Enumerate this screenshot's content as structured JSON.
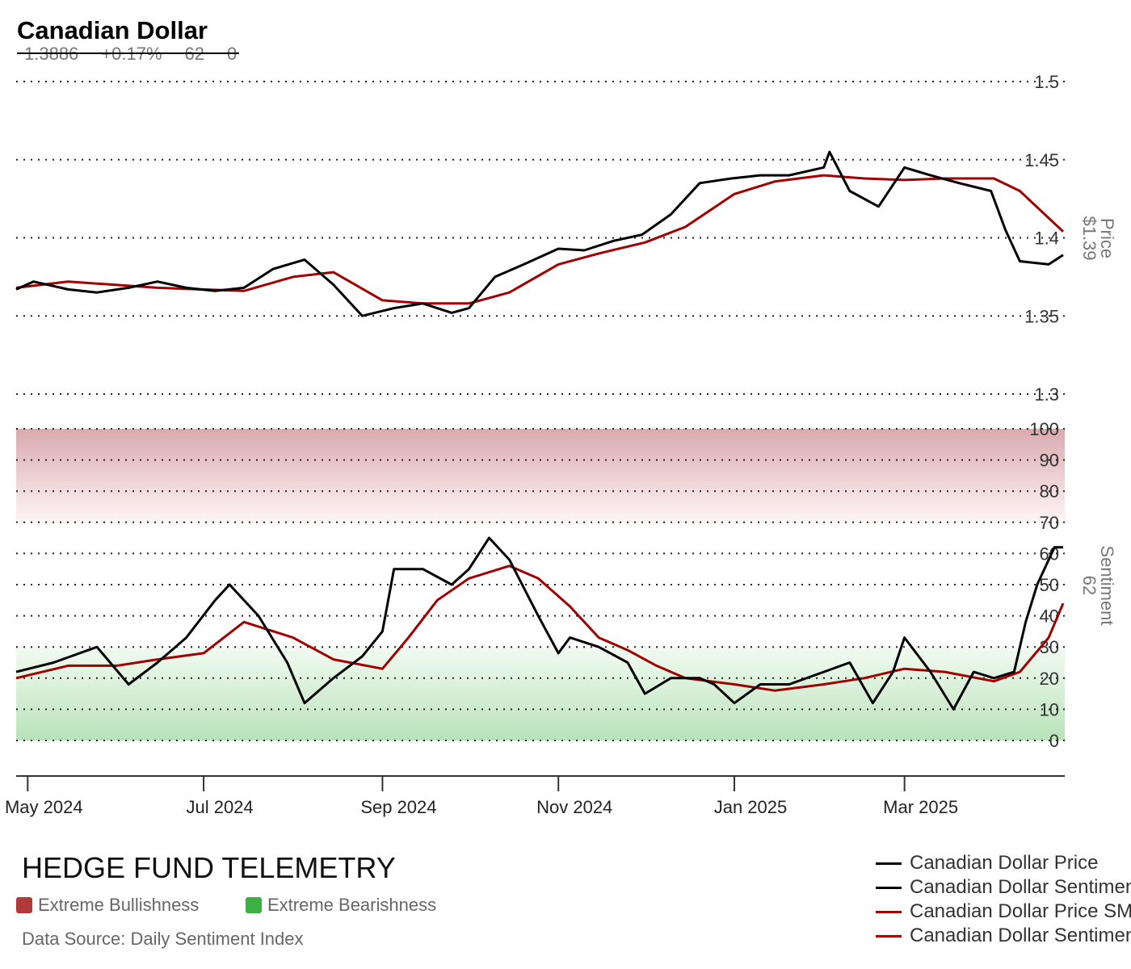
{
  "header": {
    "title": "Canadian Dollar",
    "price": "1.3886",
    "change": "+0.17%",
    "sentiment": "62",
    "extra": "0"
  },
  "footer": {
    "brand": "HEDGE FUND TELEMETRY",
    "bull_label": "Extreme Bullishness",
    "bear_label": "Extreme Bearishness",
    "source": "Data Source: Daily Sentiment Index",
    "bull_color": "#b03a3a",
    "bear_color": "#3cb043"
  },
  "legend": [
    {
      "label": "Canadian Dollar Price",
      "color": "#000000"
    },
    {
      "label": "Canadian Dollar Sentiment",
      "color": "#000000"
    },
    {
      "label": "Canadian Dollar Price SMA",
      "color": "#a00000"
    },
    {
      "label": "Canadian Dollar Sentiment SMA",
      "color": "#a00000"
    }
  ],
  "chart_data": {
    "type": "line",
    "x_ticks": [
      "May 2024",
      "Jul 2024",
      "Sep 2024",
      "Nov 2024",
      "Jan 2025",
      "Mar 2025"
    ],
    "x_tick_dates": [
      "2024-05-01",
      "2024-07-01",
      "2024-09-01",
      "2024-11-01",
      "2025-01-01",
      "2025-03-01"
    ],
    "xlim": [
      "2024-04-27",
      "2025-04-25"
    ],
    "price_panel": {
      "ylabel": "Price",
      "current_label": "$1.39",
      "ylim": [
        1.3,
        1.5
      ],
      "ticks": [
        "1.5",
        "1.45",
        "1.4",
        "1.35",
        "1.3"
      ],
      "tick_values": [
        1.5,
        1.45,
        1.4,
        1.35,
        1.3
      ],
      "series": [
        {
          "name": "Canadian Dollar Price",
          "color": "#000000",
          "points": [
            [
              "2024-04-27",
              1.367
            ],
            [
              "2024-05-03",
              1.372
            ],
            [
              "2024-05-15",
              1.367
            ],
            [
              "2024-05-25",
              1.365
            ],
            [
              "2024-06-05",
              1.368
            ],
            [
              "2024-06-15",
              1.372
            ],
            [
              "2024-06-25",
              1.368
            ],
            [
              "2024-07-05",
              1.366
            ],
            [
              "2024-07-15",
              1.368
            ],
            [
              "2024-07-25",
              1.38
            ],
            [
              "2024-08-05",
              1.386
            ],
            [
              "2024-08-15",
              1.37
            ],
            [
              "2024-08-25",
              1.35
            ],
            [
              "2024-09-05",
              1.355
            ],
            [
              "2024-09-15",
              1.358
            ],
            [
              "2024-09-25",
              1.352
            ],
            [
              "2024-10-01",
              1.355
            ],
            [
              "2024-10-10",
              1.375
            ],
            [
              "2024-10-20",
              1.383
            ],
            [
              "2024-11-01",
              1.393
            ],
            [
              "2024-11-10",
              1.392
            ],
            [
              "2024-11-20",
              1.398
            ],
            [
              "2024-11-30",
              1.402
            ],
            [
              "2024-12-10",
              1.415
            ],
            [
              "2024-12-20",
              1.435
            ],
            [
              "2024-12-31",
              1.438
            ],
            [
              "2025-01-10",
              1.44
            ],
            [
              "2025-01-20",
              1.44
            ],
            [
              "2025-02-01",
              1.445
            ],
            [
              "2025-02-03",
              1.455
            ],
            [
              "2025-02-10",
              1.43
            ],
            [
              "2025-02-20",
              1.42
            ],
            [
              "2025-03-01",
              1.445
            ],
            [
              "2025-03-10",
              1.44
            ],
            [
              "2025-03-20",
              1.435
            ],
            [
              "2025-03-31",
              1.43
            ],
            [
              "2025-04-05",
              1.405
            ],
            [
              "2025-04-10",
              1.385
            ],
            [
              "2025-04-20",
              1.383
            ],
            [
              "2025-04-25",
              1.389
            ]
          ]
        },
        {
          "name": "Canadian Dollar Price SMA",
          "color": "#a00000",
          "points": [
            [
              "2024-04-27",
              1.368
            ],
            [
              "2024-05-15",
              1.372
            ],
            [
              "2024-06-15",
              1.368
            ],
            [
              "2024-07-15",
              1.366
            ],
            [
              "2024-08-01",
              1.375
            ],
            [
              "2024-08-15",
              1.378
            ],
            [
              "2024-09-01",
              1.36
            ],
            [
              "2024-09-15",
              1.358
            ],
            [
              "2024-10-01",
              1.358
            ],
            [
              "2024-10-15",
              1.365
            ],
            [
              "2024-11-01",
              1.383
            ],
            [
              "2024-11-15",
              1.39
            ],
            [
              "2024-12-01",
              1.397
            ],
            [
              "2024-12-15",
              1.407
            ],
            [
              "2025-01-01",
              1.428
            ],
            [
              "2025-01-15",
              1.436
            ],
            [
              "2025-02-01",
              1.44
            ],
            [
              "2025-02-15",
              1.438
            ],
            [
              "2025-03-01",
              1.437
            ],
            [
              "2025-03-15",
              1.438
            ],
            [
              "2025-04-01",
              1.438
            ],
            [
              "2025-04-10",
              1.43
            ],
            [
              "2025-04-25",
              1.404
            ]
          ]
        }
      ]
    },
    "sentiment_panel": {
      "ylabel": "Sentiment",
      "current_label": "62",
      "ylim": [
        0,
        100
      ],
      "ticks": [
        "100",
        "90",
        "80",
        "70",
        "60",
        "50",
        "40",
        "30",
        "20",
        "10",
        "0"
      ],
      "tick_values": [
        100,
        90,
        80,
        70,
        60,
        50,
        40,
        30,
        20,
        10,
        0
      ],
      "bands": [
        {
          "from": 70,
          "to": 100,
          "color": "#d9a9ad"
        },
        {
          "from": 0,
          "to": 30,
          "color": "#b9e2b9"
        }
      ],
      "series": [
        {
          "name": "Canadian Dollar Sentiment",
          "color": "#000000",
          "points": [
            [
              "2024-04-27",
              22
            ],
            [
              "2024-05-10",
              25
            ],
            [
              "2024-05-25",
              30
            ],
            [
              "2024-06-05",
              18
            ],
            [
              "2024-06-15",
              25
            ],
            [
              "2024-06-25",
              33
            ],
            [
              "2024-07-05",
              45
            ],
            [
              "2024-07-10",
              50
            ],
            [
              "2024-07-20",
              40
            ],
            [
              "2024-07-30",
              25
            ],
            [
              "2024-08-05",
              12
            ],
            [
              "2024-08-15",
              20
            ],
            [
              "2024-08-25",
              27
            ],
            [
              "2024-09-01",
              35
            ],
            [
              "2024-09-05",
              55
            ],
            [
              "2024-09-15",
              55
            ],
            [
              "2024-09-25",
              50
            ],
            [
              "2024-10-01",
              55
            ],
            [
              "2024-10-08",
              65
            ],
            [
              "2024-10-15",
              58
            ],
            [
              "2024-10-25",
              40
            ],
            [
              "2024-11-01",
              28
            ],
            [
              "2024-11-05",
              33
            ],
            [
              "2024-11-15",
              30
            ],
            [
              "2024-11-25",
              25
            ],
            [
              "2024-12-01",
              15
            ],
            [
              "2024-12-10",
              20
            ],
            [
              "2024-12-20",
              20
            ],
            [
              "2024-12-25",
              18
            ],
            [
              "2025-01-01",
              12
            ],
            [
              "2025-01-10",
              18
            ],
            [
              "2025-01-20",
              18
            ],
            [
              "2025-02-01",
              22
            ],
            [
              "2025-02-10",
              25
            ],
            [
              "2025-02-18",
              12
            ],
            [
              "2025-02-25",
              22
            ],
            [
              "2025-03-01",
              33
            ],
            [
              "2025-03-10",
              22
            ],
            [
              "2025-03-18",
              10
            ],
            [
              "2025-03-25",
              22
            ],
            [
              "2025-04-01",
              20
            ],
            [
              "2025-04-08",
              22
            ],
            [
              "2025-04-12",
              38
            ],
            [
              "2025-04-16",
              50
            ],
            [
              "2025-04-22",
              62
            ],
            [
              "2025-04-25",
              62
            ]
          ]
        },
        {
          "name": "Canadian Dollar Sentiment SMA",
          "color": "#a00000",
          "points": [
            [
              "2024-04-27",
              20
            ],
            [
              "2024-05-15",
              24
            ],
            [
              "2024-06-01",
              24
            ],
            [
              "2024-06-15",
              26
            ],
            [
              "2024-07-01",
              28
            ],
            [
              "2024-07-15",
              38
            ],
            [
              "2024-08-01",
              33
            ],
            [
              "2024-08-15",
              26
            ],
            [
              "2024-09-01",
              23
            ],
            [
              "2024-09-10",
              33
            ],
            [
              "2024-09-20",
              45
            ],
            [
              "2024-10-01",
              52
            ],
            [
              "2024-10-15",
              56
            ],
            [
              "2024-10-25",
              52
            ],
            [
              "2024-11-05",
              43
            ],
            [
              "2024-11-15",
              33
            ],
            [
              "2024-11-25",
              29
            ],
            [
              "2024-12-05",
              24
            ],
            [
              "2024-12-15",
              20
            ],
            [
              "2025-01-01",
              18
            ],
            [
              "2025-01-15",
              16
            ],
            [
              "2025-02-01",
              18
            ],
            [
              "2025-02-15",
              20
            ],
            [
              "2025-03-01",
              23
            ],
            [
              "2025-03-15",
              22
            ],
            [
              "2025-04-01",
              19
            ],
            [
              "2025-04-10",
              22
            ],
            [
              "2025-04-20",
              33
            ],
            [
              "2025-04-25",
              44
            ]
          ]
        }
      ]
    }
  }
}
